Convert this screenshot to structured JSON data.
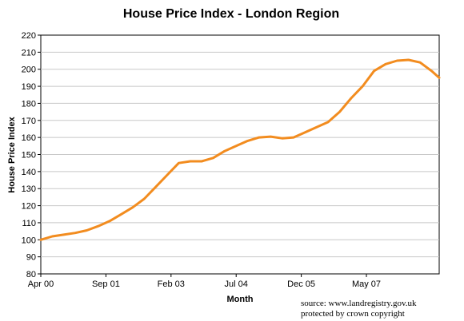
{
  "chart_data": {
    "type": "line",
    "title": "House Price Index - London Region",
    "xlabel": "Month",
    "ylabel": "House Price Index",
    "ylim": [
      80,
      220
    ],
    "yticks": [
      80,
      90,
      100,
      110,
      120,
      130,
      140,
      150,
      160,
      170,
      180,
      190,
      200,
      210,
      220
    ],
    "xticks": [
      "Apr 00",
      "Sep 01",
      "Feb 03",
      "Jul 04",
      "Dec 05",
      "May 07"
    ],
    "xrange": [
      "Apr 00",
      "Dec 08"
    ],
    "grid": "horizontal",
    "legend": "none",
    "series_color": "#f28c1f",
    "series": [
      {
        "x": [
          "Apr 00",
          "Jul 00",
          "Oct 00",
          "Jan 01",
          "Apr 01",
          "Jul 01",
          "Oct 01",
          "Jan 02",
          "Apr 02",
          "Jul 02",
          "Oct 02",
          "Jan 03",
          "Apr 03",
          "Jul 03",
          "Oct 03",
          "Jan 04",
          "Apr 04",
          "Jul 04",
          "Oct 04",
          "Jan 05",
          "Apr 05",
          "Jul 05",
          "Oct 05",
          "Jan 06",
          "Apr 06",
          "Jul 06",
          "Oct 06",
          "Jan 07",
          "Apr 07",
          "Jul 07",
          "Oct 07",
          "Jan 08",
          "Apr 08",
          "Jul 08",
          "Oct 08",
          "Dec 08"
        ],
        "values": [
          100,
          102,
          103,
          104,
          105.5,
          108,
          111,
          115,
          119,
          124,
          131,
          138,
          145,
          146,
          146,
          148,
          152,
          155,
          158,
          160,
          160.5,
          159.5,
          160,
          163,
          166,
          169,
          175,
          183,
          190,
          199,
          203,
          205,
          205.5,
          204,
          199,
          195
        ]
      }
    ],
    "annotations": [
      "source: www.landregistry.gov.uk",
      "protected by crown copyright"
    ]
  }
}
